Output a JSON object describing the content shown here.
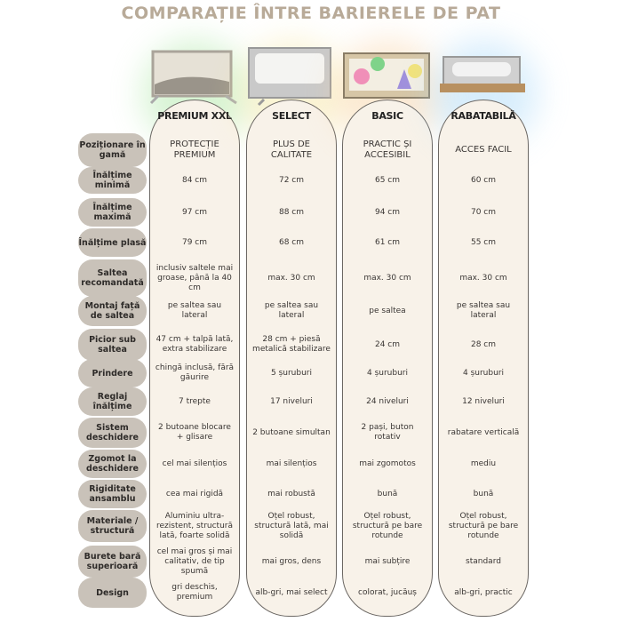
{
  "title": "COMPARAȚIE ÎNTRE BARIERELE DE PAT",
  "colors": {
    "title": "#b8aa98",
    "column_bg": "#f8f2e9",
    "label_bg": "#c9c2b9"
  },
  "products": [
    {
      "name": "PREMIUM XXL",
      "image": "bed-rail-light-gray-wave"
    },
    {
      "name": "SELECT",
      "image": "bed-rail-gray-white"
    },
    {
      "name": "BASIC",
      "image": "bed-rail-colorful-print"
    },
    {
      "name": "RABATABILĂ",
      "image": "bed-rail-foldable-wood"
    }
  ],
  "rows": [
    {
      "label": "Poziționare în gamă",
      "values": [
        "PROTECȚIE PREMIUM",
        "PLUS DE CALITATE",
        "PRACTIC ȘI ACCESIBIL",
        "ACCES FACIL"
      ]
    },
    {
      "label": "Înălțime minimă",
      "values": [
        "84 cm",
        "72 cm",
        "65 cm",
        "60 cm"
      ]
    },
    {
      "label": "Înălțime maximă",
      "values": [
        "97 cm",
        "88 cm",
        "94 cm",
        "70 cm"
      ]
    },
    {
      "label": "Înălțime plasă",
      "values": [
        "79 cm",
        "68 cm",
        "61 cm",
        "55 cm"
      ]
    },
    {
      "label": "Saltea recomandată",
      "values": [
        "inclusiv saltele mai groase, până la 40 cm",
        "max. 30 cm",
        "max. 30 cm",
        "max. 30 cm"
      ]
    },
    {
      "label": "Montaj față de saltea",
      "values": [
        "pe saltea sau lateral",
        "pe saltea sau lateral",
        "pe saltea",
        "pe saltea sau lateral"
      ]
    },
    {
      "label": "Picior sub saltea",
      "values": [
        "47 cm + talpă lată, extra stabilizare",
        "28 cm + piesă metalică stabilizare",
        "24 cm",
        "28 cm"
      ]
    },
    {
      "label": "Prindere",
      "values": [
        "chingă inclusă, fără găurire",
        "5 șuruburi",
        "4 șuruburi",
        "4 șuruburi"
      ]
    },
    {
      "label": "Reglaj înălțime",
      "values": [
        "7 trepte",
        "17 niveluri",
        "24 niveluri",
        "12 niveluri"
      ]
    },
    {
      "label": "Sistem deschidere",
      "values": [
        "2 butoane blocare + glisare",
        "2 butoane simultan",
        "2 pași, buton rotativ",
        "rabatare verticală"
      ]
    },
    {
      "label": "Zgomot la deschidere",
      "values": [
        "cel mai silențios",
        "mai silențios",
        "mai zgomotos",
        "mediu"
      ]
    },
    {
      "label": "Rigiditate ansamblu",
      "values": [
        "cea mai rigidă",
        "mai robustă",
        "bună",
        "bună"
      ]
    },
    {
      "label": "Materiale / structură",
      "values": [
        "Aluminiu ultra-rezistent, structură lată, foarte solidă",
        "Oțel robust, structură lată, mai solidă",
        "Oțel robust, structură pe bare rotunde",
        "Oțel robust, structură pe bare rotunde"
      ]
    },
    {
      "label": "Burete bară superioară",
      "values": [
        "cel mai gros și mai calitativ, de tip spumă",
        "mai gros, dens",
        "mai subțire",
        "standard"
      ]
    },
    {
      "label": "Design",
      "values": [
        "gri deschis, premium",
        "alb-gri, mai select",
        "colorat, jucăuș",
        "alb-gri, practic"
      ]
    }
  ]
}
